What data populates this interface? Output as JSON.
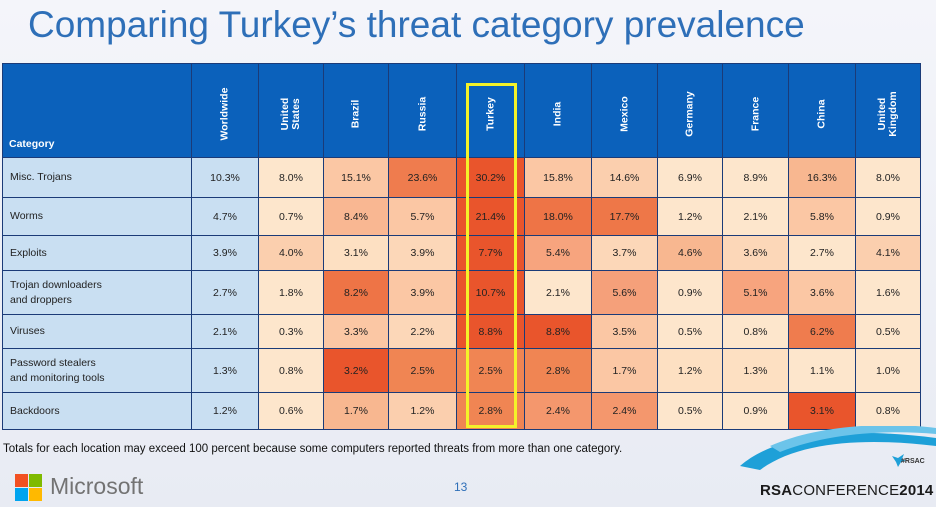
{
  "title": "Comparing Turkey’s threat category prevalence",
  "table": {
    "category_header": "Category",
    "columns": [
      "Worldwide",
      "United\nStates",
      "Brazil",
      "Russia",
      "Turkey",
      "India",
      "Mexico",
      "Germany",
      "France",
      "China",
      "United\nKingdom"
    ],
    "rows": [
      {
        "category": "Misc. Trojans",
        "values": [
          "10.3%",
          "8.0%",
          "15.1%",
          "23.6%",
          "30.2%",
          "15.8%",
          "14.6%",
          "6.9%",
          "8.9%",
          "16.3%",
          "8.0%"
        ],
        "colors": [
          "#c9dff2",
          "#fde6cc",
          "#fbc7a4",
          "#ef7c4e",
          "#e9552c",
          "#fbc7a4",
          "#fbcfae",
          "#fde6cc",
          "#fde6cc",
          "#f8b790",
          "#fde6cc"
        ]
      },
      {
        "category": "Worms",
        "values": [
          "4.7%",
          "0.7%",
          "8.4%",
          "5.7%",
          "21.4%",
          "18.0%",
          "17.7%",
          "1.2%",
          "2.1%",
          "5.8%",
          "0.9%"
        ],
        "colors": [
          "#c9dff2",
          "#fde6cc",
          "#f9b792",
          "#fbc7a4",
          "#e9552c",
          "#ee7446",
          "#ee7748",
          "#fde6cc",
          "#fde6cc",
          "#fbc7a4",
          "#fde6cc"
        ]
      },
      {
        "category": "Exploits",
        "values": [
          "3.9%",
          "4.0%",
          "3.1%",
          "3.9%",
          "7.7%",
          "5.4%",
          "3.7%",
          "4.6%",
          "3.6%",
          "2.7%",
          "4.1%"
        ],
        "colors": [
          "#c9dff2",
          "#fbcfae",
          "#fde0c2",
          "#fcd7b8",
          "#e9552c",
          "#f7a47e",
          "#fcd7b8",
          "#f8b790",
          "#fcd7b8",
          "#fde6cc",
          "#fbcfae"
        ]
      },
      {
        "category": "Trojan downloaders\nand droppers",
        "values": [
          "2.7%",
          "1.8%",
          "8.2%",
          "3.9%",
          "10.7%",
          "2.1%",
          "5.6%",
          "0.9%",
          "5.1%",
          "3.6%",
          "1.6%"
        ],
        "colors": [
          "#c9dff2",
          "#fde6cc",
          "#ee7446",
          "#fbc7a4",
          "#e9552c",
          "#fde6cc",
          "#f5a07a",
          "#fde6cc",
          "#f7a47e",
          "#fbc7a4",
          "#fde6cc"
        ]
      },
      {
        "category": "Viruses",
        "values": [
          "2.1%",
          "0.3%",
          "3.3%",
          "2.2%",
          "8.8%",
          "8.8%",
          "3.5%",
          "0.5%",
          "0.8%",
          "6.2%",
          "0.5%"
        ],
        "colors": [
          "#c9dff2",
          "#fde6cc",
          "#fbc7a4",
          "#fcd7b8",
          "#e9552c",
          "#e9552c",
          "#fbc7a4",
          "#fde6cc",
          "#fde6cc",
          "#ef7c4e",
          "#fde6cc"
        ]
      },
      {
        "category": "Password stealers\nand monitoring tools",
        "values": [
          "1.3%",
          "0.8%",
          "3.2%",
          "2.5%",
          "2.5%",
          "2.8%",
          "1.7%",
          "1.2%",
          "1.3%",
          "1.1%",
          "1.0%"
        ],
        "colors": [
          "#c9dff2",
          "#fde6cc",
          "#e9552c",
          "#f08553",
          "#f08553",
          "#f08553",
          "#fbc7a4",
          "#fde0c2",
          "#fde0c2",
          "#fde6cc",
          "#fde6cc"
        ]
      },
      {
        "category": "Backdoors",
        "values": [
          "1.2%",
          "0.6%",
          "1.7%",
          "1.2%",
          "2.8%",
          "2.4%",
          "2.4%",
          "0.5%",
          "0.9%",
          "3.1%",
          "0.8%"
        ],
        "colors": [
          "#c9dff2",
          "#fde6cc",
          "#f8b790",
          "#fbcfae",
          "#f08553",
          "#f4976d",
          "#f4976d",
          "#fde6cc",
          "#fde6cc",
          "#e9552c",
          "#fde6cc"
        ]
      }
    ]
  },
  "footnote": "Totals for each location may exceed 100 percent because some computers reported threats from more than one category.",
  "footer": {
    "brand": "Microsoft",
    "page_number": "13",
    "hashtag": "#RSAC",
    "conference_prefix": "RSA",
    "conference_name": "CONFERENCE",
    "conference_year": "2014"
  },
  "colors": {
    "title": "#2e6fb8",
    "header_bg": "#0b61bb",
    "highlight": "#f4f22a",
    "ms_red": "#f25022",
    "ms_green": "#7fba00",
    "ms_blue": "#00a4ef",
    "ms_yellow": "#ffb900"
  }
}
